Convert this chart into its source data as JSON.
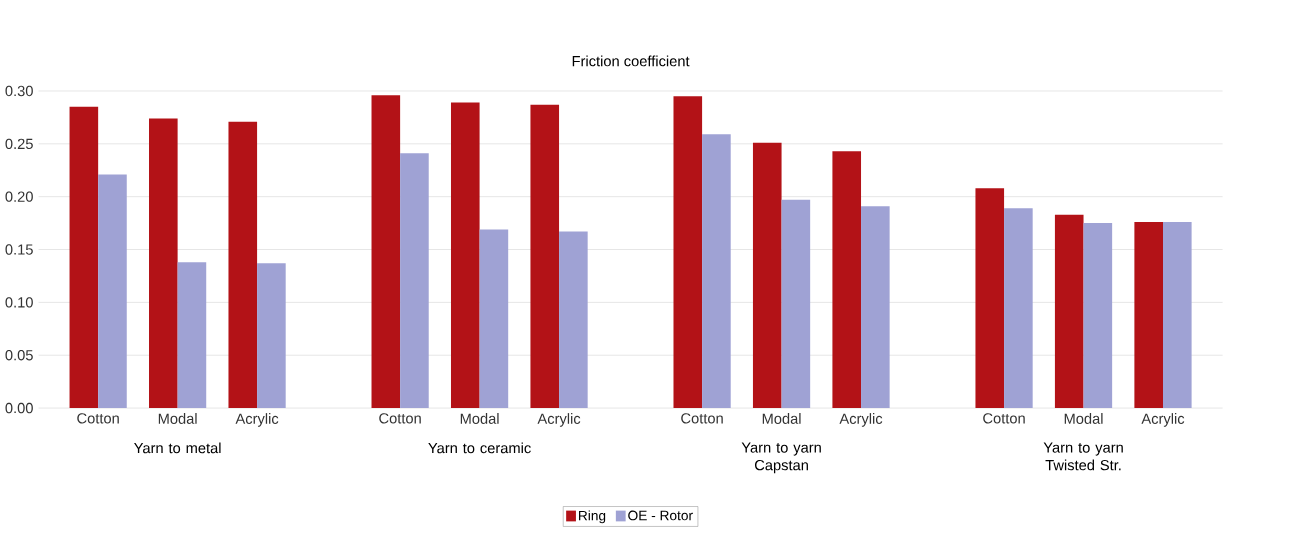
{
  "chart_data": {
    "type": "bar",
    "title": "Friction coefficient",
    "categories": [
      "Cotton",
      "Modal",
      "Acrylic",
      "Cotton",
      "Modal",
      "Acrylic",
      "Cotton",
      "Modal",
      "Acrylic",
      "Cotton",
      "Modal",
      "Acrylic"
    ],
    "series": [
      {
        "name": "Ring",
        "color": "#b31217",
        "values": [
          0.285,
          0.274,
          0.271,
          0.296,
          0.289,
          0.287,
          0.295,
          0.251,
          0.243,
          0.208,
          0.183,
          0.176
        ]
      },
      {
        "name": "OE - Rotor",
        "color": "#9fa2d4",
        "values": [
          0.221,
          0.138,
          0.137,
          0.241,
          0.169,
          0.167,
          0.259,
          0.197,
          0.191,
          0.189,
          0.175,
          0.176
        ]
      }
    ],
    "annotations": [
      "Yarn to metal",
      "Yarn to ceramic",
      "Yarn to yarn Capstan",
      "Yarn to yarn Twisted Str."
    ],
    "ylim": [
      0,
      0.3
    ],
    "yticks": [
      {
        "value": 0,
        "label": "0.00"
      },
      {
        "value": 0.05,
        "label": "0.05"
      },
      {
        "value": 0.1,
        "label": "0.10"
      },
      {
        "value": 0.15,
        "label": "0.15"
      },
      {
        "value": 0.2,
        "label": "0.20"
      },
      {
        "value": 0.25,
        "label": "0.25"
      },
      {
        "value": 0.3,
        "label": "0.30"
      }
    ],
    "grid": "y",
    "legend": "bottom"
  }
}
